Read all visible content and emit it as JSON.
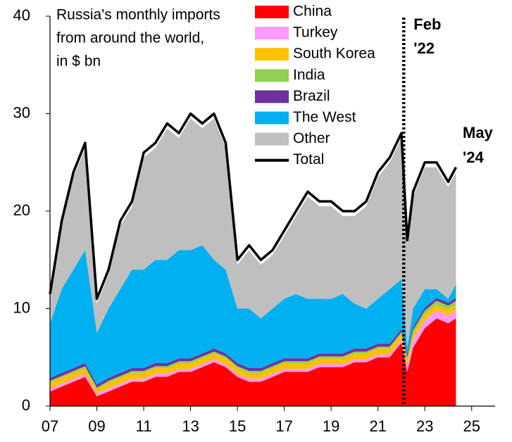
{
  "chart_data": {
    "type": "stacked_area",
    "title": [
      "Russia's monthly imports",
      "from around the world,",
      "in $ bn"
    ],
    "x": [
      2007,
      2007.5,
      2008,
      2008.5,
      2009,
      2009.5,
      2010,
      2010.5,
      2011,
      2011.5,
      2012,
      2012.5,
      2013,
      2013.5,
      2014,
      2014.5,
      2015,
      2015.5,
      2016,
      2016.5,
      2017,
      2017.5,
      2018,
      2018.5,
      2019,
      2019.5,
      2020,
      2020.5,
      2021,
      2021.5,
      2022,
      2022.25,
      2022.5,
      2023,
      2023.5,
      2024,
      2024.33
    ],
    "series": [
      {
        "name": "China",
        "color": "#ff0000",
        "values": [
          1.5,
          2,
          2.5,
          3,
          1,
          1.5,
          2,
          2.5,
          2.5,
          3,
          3,
          3.5,
          3.5,
          4,
          4.5,
          4,
          3,
          2.5,
          2.5,
          3,
          3.5,
          3.5,
          3.5,
          4,
          4,
          4,
          4.5,
          4.5,
          5,
          5,
          6.5,
          3.5,
          6,
          8,
          9,
          8.5,
          9
        ]
      },
      {
        "name": "Turkey",
        "color": "#ff99ff",
        "values": [
          0.3,
          0.3,
          0.3,
          0.3,
          0.3,
          0.3,
          0.3,
          0.3,
          0.3,
          0.3,
          0.3,
          0.3,
          0.3,
          0.3,
          0.3,
          0.3,
          0.3,
          0.3,
          0.3,
          0.3,
          0.3,
          0.3,
          0.3,
          0.3,
          0.3,
          0.3,
          0.3,
          0.3,
          0.3,
          0.3,
          0.3,
          0.5,
          0.8,
          0.8,
          0.8,
          0.8,
          0.8
        ]
      },
      {
        "name": "South Korea",
        "color": "#ffc000",
        "values": [
          0.6,
          0.6,
          0.6,
          0.6,
          0.4,
          0.6,
          0.6,
          0.6,
          0.6,
          0.6,
          0.6,
          0.6,
          0.6,
          0.6,
          0.6,
          0.6,
          0.6,
          0.6,
          0.6,
          0.6,
          0.6,
          0.6,
          0.6,
          0.6,
          0.6,
          0.6,
          0.6,
          0.6,
          0.6,
          0.6,
          0.6,
          0.6,
          0.6,
          0.6,
          0.6,
          0.6,
          0.6
        ]
      },
      {
        "name": "India",
        "color": "#92d050",
        "values": [
          0.2,
          0.2,
          0.2,
          0.2,
          0.2,
          0.2,
          0.2,
          0.2,
          0.2,
          0.2,
          0.2,
          0.2,
          0.2,
          0.2,
          0.2,
          0.2,
          0.2,
          0.2,
          0.2,
          0.2,
          0.2,
          0.2,
          0.2,
          0.2,
          0.2,
          0.2,
          0.2,
          0.2,
          0.2,
          0.2,
          0.2,
          0.4,
          0.4,
          0.4,
          0.4,
          0.4,
          0.4
        ]
      },
      {
        "name": "Brazil",
        "color": "#7030a0",
        "values": [
          0.3,
          0.3,
          0.3,
          0.3,
          0.3,
          0.3,
          0.3,
          0.3,
          0.3,
          0.3,
          0.3,
          0.3,
          0.3,
          0.3,
          0.3,
          0.3,
          0.3,
          0.3,
          0.3,
          0.3,
          0.3,
          0.3,
          0.3,
          0.3,
          0.3,
          0.3,
          0.3,
          0.3,
          0.3,
          0.3,
          0.3,
          0.3,
          0.3,
          0.3,
          0.3,
          0.3,
          0.3
        ]
      },
      {
        "name": "The West",
        "color": "#00b0f0",
        "values": [
          5.6,
          8.6,
          10.1,
          11.6,
          5.3,
          7.1,
          8.6,
          10.1,
          10.1,
          10.6,
          10.6,
          11.1,
          11.1,
          11.1,
          9.1,
          8.6,
          5.6,
          6.1,
          5.1,
          5.6,
          6.1,
          6.6,
          6.1,
          5.6,
          5.6,
          6.1,
          4.6,
          4.1,
          4.6,
          5.6,
          5.1,
          0.7,
          1.9,
          1.9,
          0.9,
          0.4,
          1.4
        ]
      },
      {
        "name": "Other",
        "color": "#bfbfbf",
        "values": [
          2.5,
          6.5,
          9.5,
          10.5,
          3,
          3.5,
          6.5,
          6.5,
          11.5,
          11.5,
          13.5,
          11.5,
          13.5,
          12,
          14.5,
          12.5,
          4.5,
          6,
          5.5,
          5.5,
          6.5,
          8,
          10.5,
          9.5,
          9.5,
          8,
          9,
          10.5,
          12.5,
          13,
          14.5,
          10.5,
          11.5,
          12.5,
          12.5,
          11.5,
          11.5
        ]
      }
    ],
    "total": {
      "name": "Total",
      "color": "#000000",
      "values": [
        11.5,
        19,
        24,
        27,
        11,
        14,
        19,
        21,
        26,
        27,
        29,
        28,
        30,
        29,
        30,
        27,
        15,
        16.5,
        15,
        16,
        18,
        20,
        22,
        21,
        21,
        20,
        20,
        21,
        24,
        25.5,
        28,
        17,
        22,
        25,
        25,
        23,
        24.5
      ]
    },
    "xlim": [
      2007,
      2026
    ],
    "xticks": [
      {
        "value": 2007,
        "label": "07"
      },
      {
        "value": 2009,
        "label": "09"
      },
      {
        "value": 2011,
        "label": "11"
      },
      {
        "value": 2013,
        "label": "13"
      },
      {
        "value": 2015,
        "label": "15"
      },
      {
        "value": 2017,
        "label": "17"
      },
      {
        "value": 2019,
        "label": "19"
      },
      {
        "value": 2021,
        "label": "21"
      },
      {
        "value": 2023,
        "label": "23"
      },
      {
        "value": 2025,
        "label": "25"
      }
    ],
    "ylim": [
      0,
      40
    ],
    "yticks": [
      0,
      10,
      20,
      30,
      40
    ],
    "event_line": {
      "x": 2022.1,
      "label": [
        "Feb",
        "'22"
      ]
    },
    "end_label": [
      "May",
      "'24"
    ]
  }
}
